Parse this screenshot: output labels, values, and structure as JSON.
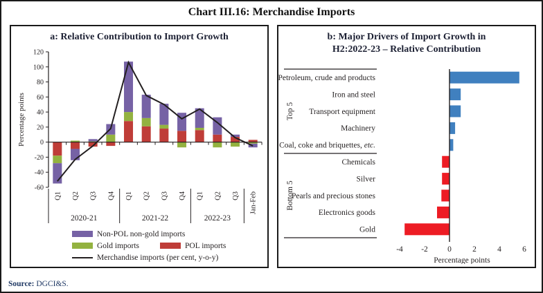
{
  "title": "Chart III.16: Merchandise Imports",
  "source": {
    "label": "Source:",
    "value": " DGCI&S."
  },
  "colors": {
    "pol": "#bf3d38",
    "gold": "#93b240",
    "nonpol": "#7662a5",
    "line": "#231f20",
    "top5": "#4080bf",
    "bottom5": "#ed1c24",
    "axis": "#231f20"
  },
  "legend": {
    "nonpol": "Non-POL non-gold imports",
    "gold": "Gold imports",
    "pol": "POL imports",
    "line": "Merchandise imports (per cent, y-o-y)"
  },
  "chart_data": [
    {
      "id": "panel_a",
      "type": "bar",
      "subtype": "stacked-bars-with-line",
      "title": "a: Relative Contribution to Import Growth",
      "ylabel": "Percentage points",
      "ylim": [
        -60,
        120
      ],
      "ytick_step": 20,
      "grid": false,
      "categories": [
        "Q1",
        "Q2",
        "Q3",
        "Q4",
        "Q1",
        "Q2",
        "Q3",
        "Q4",
        "Q1",
        "Q2",
        "Q3",
        "Jan-Feb"
      ],
      "groups": [
        {
          "label": "2020-21",
          "span": 4
        },
        {
          "label": "2021-22",
          "span": 4
        },
        {
          "label": "2022-23",
          "span": 3
        },
        {
          "label": "",
          "span": 1
        }
      ],
      "series": [
        {
          "name": "POL imports",
          "color_key": "pol",
          "values": [
            -18,
            -9,
            -6,
            -5,
            28,
            21,
            18,
            15,
            16,
            10,
            7,
            3
          ]
        },
        {
          "name": "Gold imports",
          "color_key": "gold",
          "values": [
            -10,
            2,
            1,
            10,
            12,
            11,
            5,
            -7,
            3,
            -7,
            -6,
            -2
          ]
        },
        {
          "name": "Non-POL non-gold imports",
          "color_key": "nonpol",
          "values": [
            -27,
            -15,
            3,
            14,
            67,
            31,
            28,
            24,
            26,
            23,
            3,
            -5
          ]
        }
      ],
      "line_series": {
        "name": "Merchandise imports (per cent, y-o-y)",
        "values": [
          -52,
          -23,
          -5,
          18,
          106,
          62,
          50,
          31,
          44,
          26,
          6,
          -5
        ]
      }
    },
    {
      "id": "panel_b",
      "type": "bar",
      "subtype": "horizontal-bars",
      "title_line1": "b: Major Drivers of Import Growth in",
      "title_line2": "H2:2022-23 – Relative Contribution",
      "xlabel": "Percentage points",
      "xlim": [
        -4,
        6
      ],
      "xticks": [
        -4,
        -2,
        0,
        2,
        4,
        6
      ],
      "group_labels": [
        "Top 5",
        "Bottom 5"
      ],
      "rows": [
        {
          "label": "Petroleum, crude and products",
          "italic": "",
          "value": 5.6,
          "group": 0
        },
        {
          "label": "Iron and steel",
          "italic": "",
          "value": 0.9,
          "group": 0
        },
        {
          "label": "Transport equipment",
          "italic": "",
          "value": 0.9,
          "group": 0
        },
        {
          "label": "Machinery",
          "italic": "",
          "value": 0.45,
          "group": 0
        },
        {
          "label": "Coal, coke and briquettes, ",
          "italic": "etc.",
          "value": 0.3,
          "group": 0
        },
        {
          "label": "Chemicals",
          "italic": "",
          "value": -0.6,
          "group": 1
        },
        {
          "label": "Silver",
          "italic": "",
          "value": -0.6,
          "group": 1
        },
        {
          "label": "Pearls and precious stones",
          "italic": "",
          "value": -0.65,
          "group": 1
        },
        {
          "label": "Electronics goods",
          "italic": "",
          "value": -1.0,
          "group": 1
        },
        {
          "label": "Gold",
          "italic": "",
          "value": -3.6,
          "group": 1
        }
      ]
    }
  ]
}
